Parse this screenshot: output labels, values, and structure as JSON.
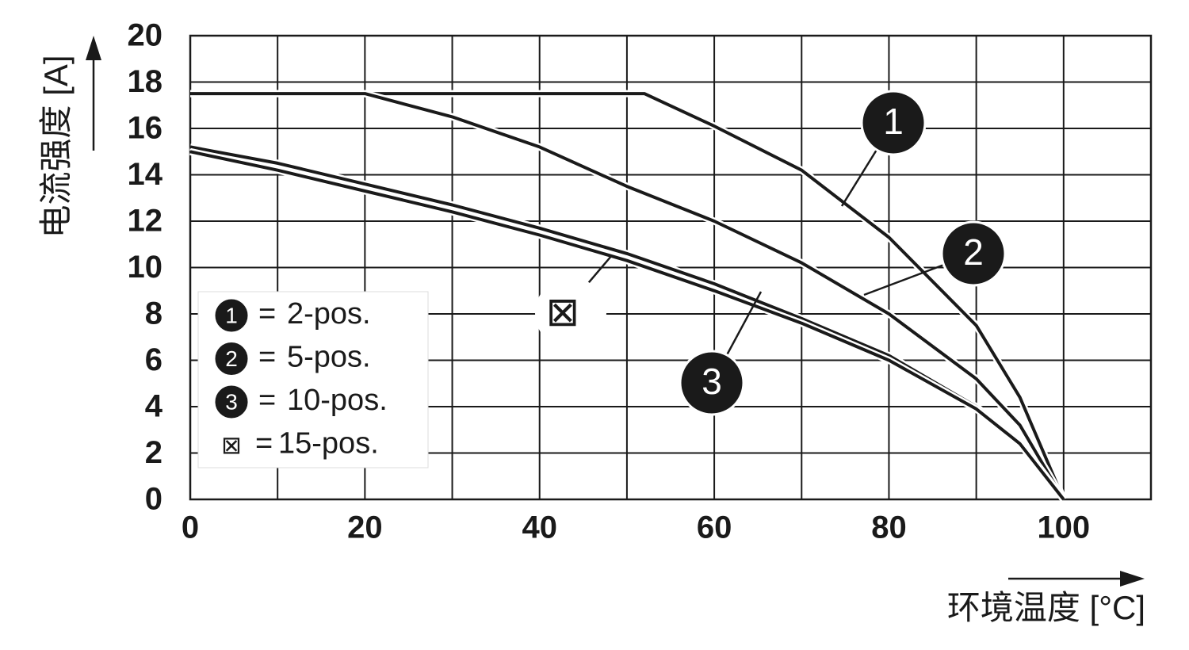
{
  "chart_data": {
    "type": "line",
    "xlabel": "环境温度 [°C]",
    "ylabel": "电流强度 [A]",
    "xlim": [
      0,
      110
    ],
    "ylim": [
      0,
      20
    ],
    "xticks": [
      0,
      20,
      40,
      60,
      80,
      100
    ],
    "xminorticks": [
      10,
      30,
      50,
      70,
      90,
      110
    ],
    "yticks": [
      0,
      2,
      4,
      6,
      8,
      10,
      12,
      14,
      16,
      18,
      20
    ],
    "grid": true,
    "legend": "lower left",
    "legend_separator": "=",
    "series": [
      {
        "name": "2-pos.",
        "marker": "1",
        "color": "#1a1a1a",
        "x": [
          0,
          52,
          60,
          70,
          80,
          90,
          95,
          100
        ],
        "values": [
          17.5,
          17.5,
          16.1,
          14.2,
          11.3,
          7.5,
          4.4,
          0
        ]
      },
      {
        "name": "5-pos.",
        "marker": "2",
        "color": "#1a1a1a",
        "x": [
          0,
          20,
          30,
          40,
          50,
          60,
          70,
          80,
          90,
          95,
          100
        ],
        "values": [
          17.5,
          17.5,
          16.5,
          15.2,
          13.5,
          12.0,
          10.2,
          8.0,
          5.2,
          3.2,
          0
        ]
      },
      {
        "name": "10-pos.",
        "marker": "3",
        "color": "#1a1a1a",
        "x": [
          0,
          10,
          20,
          30,
          40,
          50,
          60,
          70,
          80,
          90,
          95,
          100
        ],
        "values": [
          15.2,
          14.5,
          13.6,
          12.7,
          11.7,
          10.6,
          9.3,
          7.8,
          6.2,
          4.0,
          2.5,
          0
        ]
      },
      {
        "name": "15-pos.",
        "marker": "⊠",
        "color": "#1a1a1a",
        "x": [
          0,
          10,
          20,
          30,
          40,
          50,
          60,
          70,
          80,
          90,
          95,
          100
        ],
        "values": [
          15.0,
          14.2,
          13.3,
          12.4,
          11.4,
          10.3,
          9.0,
          7.6,
          6.0,
          3.9,
          2.4,
          0
        ]
      }
    ]
  }
}
